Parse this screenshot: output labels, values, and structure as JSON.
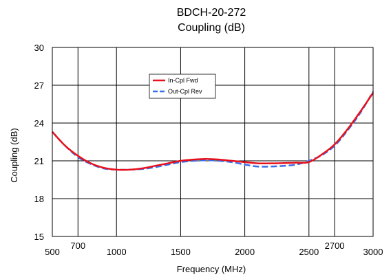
{
  "chart_data": {
    "type": "line",
    "title": "BDCH-20-272",
    "subtitle": "Coupling (dB)",
    "xlabel": "Frequency (MHz)",
    "ylabel": "Coupling (dB)",
    "xlim": [
      500,
      3000
    ],
    "ylim": [
      15,
      30
    ],
    "x_ticks": [
      500,
      700,
      1000,
      1500,
      2000,
      2500,
      2700,
      3000
    ],
    "x_tick_labels": [
      "500",
      "700",
      "1000",
      "1500",
      "2000",
      "2500",
      "2700",
      "3000"
    ],
    "y_ticks": [
      15,
      18,
      21,
      24,
      27,
      30
    ],
    "y_tick_labels": [
      "15",
      "18",
      "21",
      "24",
      "27",
      "30"
    ],
    "grid": true,
    "legend": "upper-middle",
    "series": [
      {
        "name": "In-Cpl Fwd",
        "color": "#e8101c",
        "style": "solid",
        "x": [
          500,
          600,
          700,
          800,
          900,
          1000,
          1100,
          1200,
          1300,
          1400,
          1500,
          1600,
          1700,
          1800,
          1900,
          2000,
          2100,
          2200,
          2300,
          2400,
          2500,
          2600,
          2700,
          2800,
          2900,
          3000
        ],
        "y": [
          23.3,
          22.2,
          21.4,
          20.8,
          20.45,
          20.3,
          20.3,
          20.4,
          20.6,
          20.8,
          21.0,
          21.1,
          21.15,
          21.1,
          21.0,
          20.9,
          20.8,
          20.8,
          20.82,
          20.85,
          20.9,
          21.5,
          22.3,
          23.5,
          24.9,
          26.4
        ]
      },
      {
        "name": "Out-Cpl Rev",
        "color": "#3a6ee8",
        "style": "dashed",
        "x": [
          500,
          600,
          700,
          800,
          900,
          1000,
          1100,
          1200,
          1300,
          1400,
          1500,
          1600,
          1700,
          1800,
          1900,
          2000,
          2100,
          2200,
          2300,
          2400,
          2500,
          2600,
          2700,
          2800,
          2900,
          3000
        ],
        "y": [
          23.3,
          22.2,
          21.3,
          20.75,
          20.4,
          20.3,
          20.3,
          20.35,
          20.5,
          20.7,
          20.9,
          21.0,
          21.05,
          21.0,
          20.9,
          20.7,
          20.55,
          20.55,
          20.6,
          20.7,
          21.0,
          21.45,
          22.2,
          23.4,
          24.8,
          26.5
        ]
      }
    ]
  }
}
